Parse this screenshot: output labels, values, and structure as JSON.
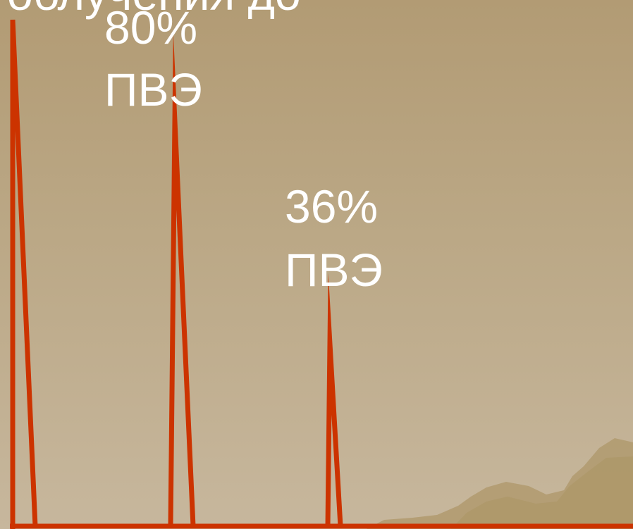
{
  "slide": {
    "top_text": "облучения до",
    "background_color": "#b8a17c",
    "spike_color": "#cc3300"
  },
  "chart_data": {
    "type": "line",
    "title": "",
    "xlabel": "",
    "ylabel": "",
    "ylim": [
      0,
      100
    ],
    "peaks": [
      {
        "value": 100,
        "label_value": "",
        "label_unit": ""
      },
      {
        "value": 80,
        "label_value": "80%",
        "label_unit": "ПВЭ"
      },
      {
        "value": 36,
        "label_value": "36%",
        "label_unit": "ПВЭ"
      }
    ]
  }
}
